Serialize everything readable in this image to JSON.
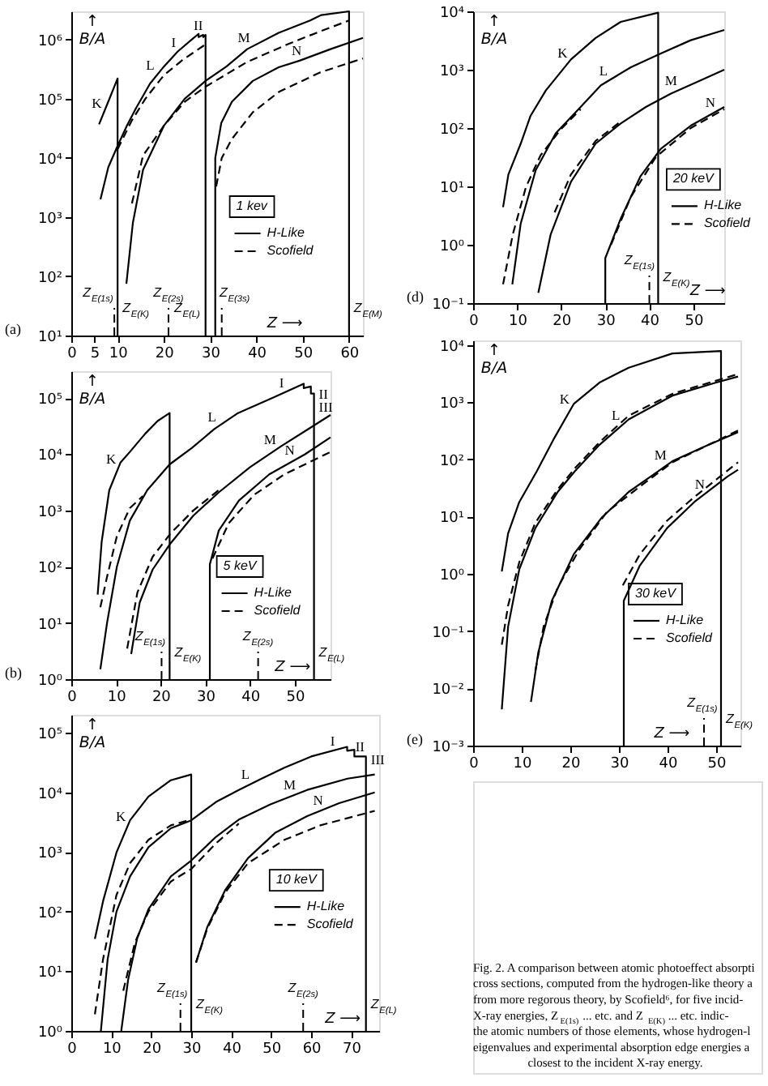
{
  "chart_data": [
    {
      "type": "line",
      "title": "1 kev",
      "xlabel": "Z ⟶",
      "ylabel": "↑\nB/A",
      "log": true,
      "legend": "right",
      "xlim": [
        0,
        63
      ],
      "ylim": [
        10,
        3000000
      ],
      "xticks": [
        0,
        5,
        10,
        20,
        30,
        40,
        50,
        60
      ],
      "yticks": [
        {
          "value": 10,
          "label": "10¹"
        },
        {
          "value": 100,
          "label": "10²"
        },
        {
          "value": 1000,
          "label": "10³"
        },
        {
          "value": 10000,
          "label": "10⁴"
        },
        {
          "value": 100000,
          "label": "10⁵"
        },
        {
          "value": 1000000,
          "label": "10⁶"
        }
      ],
      "series": [
        {
          "name": "H-Like",
          "color": "#000000",
          "line_style": "solid",
          "x": [
            6,
            8,
            10,
            10
          ],
          "values": [
            37000,
            90000,
            220000,
            10
          ]
        },
        {
          "color": "#000000",
          "line_style": "solid",
          "x": [
            6.3,
            8,
            10,
            12,
            14,
            17,
            20,
            23,
            26,
            27.5,
            27.5,
            28.5,
            28.5,
            29,
            29
          ],
          "values": [
            2000,
            7000,
            16000,
            35000,
            70000,
            180000,
            350000,
            630000,
            1000000,
            1250000,
            1100000,
            1200000,
            1100000,
            1200000,
            10
          ]
        },
        {
          "color": "#000000",
          "line_style": "solid",
          "x": [
            11.9,
            13.3,
            15.5,
            20,
            24.5,
            29,
            33.5,
            38,
            44.8,
            51.6,
            54,
            60,
            60
          ],
          "values": [
            75,
            800,
            6300,
            35000,
            100000,
            200000,
            350000,
            690000,
            1300000,
            2100000,
            2600000,
            3000000,
            10
          ]
        },
        {
          "color": "#000000",
          "line_style": "solid",
          "x": [
            31.1,
            31.1,
            32.4,
            34.7,
            39.2,
            44.8,
            49.3,
            56,
            63
          ],
          "values": [
            10,
            10000,
            39000,
            89000,
            200000,
            340000,
            440000,
            690000,
            1070000
          ]
        },
        {
          "name": "Scofield",
          "color": "#000000",
          "line_style": "dashed",
          "x": [
            10,
            13,
            16,
            20,
            24,
            29
          ],
          "values": [
            14000,
            42000,
            100000,
            250000,
            450000,
            830000
          ]
        },
        {
          "color": "#000000",
          "line_style": "dashed",
          "x": [
            13.1,
            15.5,
            20,
            24.5,
            29,
            38,
            47,
            54,
            60
          ],
          "values": [
            1700,
            11000,
            35000,
            89000,
            160000,
            420000,
            850000,
            1400000,
            2100000
          ]
        },
        {
          "color": "#000000",
          "line_style": "dashed",
          "x": [
            31.3,
            32.5,
            34.7,
            39.2,
            44.8,
            53.8,
            63
          ],
          "values": [
            3300,
            10000,
            21000,
            59000,
            130000,
            280000,
            480000
          ]
        }
      ],
      "ref_lines": [
        {
          "axis": "x",
          "value": 9.3,
          "label": "Z$_{E(1s)}$",
          "line_style": "dashed"
        },
        {
          "axis": "x",
          "value": 21,
          "label": "Z$_{E(2s)}$",
          "line_style": "dashed"
        },
        {
          "axis": "x",
          "value": 32.5,
          "label": "Z$_{E(3s)}$",
          "line_style": "dashed"
        }
      ],
      "annotations": [
        "(a)",
        {
          "text": "K",
          "x": 7.5,
          "y": 72000
        },
        {
          "text": "L",
          "x": 19,
          "y": 280000
        },
        {
          "text": "M",
          "x": 38.5,
          "y": 720000
        },
        {
          "text": "N",
          "x": 49.3,
          "y": 440000
        },
        {
          "text": "I",
          "x": 23.5,
          "y": 680000
        },
        {
          "text": "II",
          "x": 28.45,
          "y": 1200000
        },
        {
          "text": "Z$_{E(K)}$",
          "x": 10,
          "y": 28
        },
        {
          "text": "Z$_{E(L)}$",
          "x": 29,
          "y": 28
        },
        {
          "text": "Z$_{E(M)}$",
          "x": 60,
          "y": 28
        }
      ]
    },
    {
      "type": "line",
      "title": "5 keV",
      "xlabel": "Z ⟶",
      "ylabel": "↑\nB/A",
      "log": true,
      "legend": "right",
      "xlim": [
        0,
        58
      ],
      "ylim": [
        1,
        300000
      ],
      "xticks": [
        0,
        10,
        20,
        30,
        40,
        50
      ],
      "yticks": [
        {
          "value": 1,
          "label": "10⁰"
        },
        {
          "value": 10,
          "label": "10¹"
        },
        {
          "value": 100,
          "label": "10²"
        },
        {
          "value": 1000,
          "label": "10³"
        },
        {
          "value": 10000,
          "label": "10⁴"
        },
        {
          "value": 100000,
          "label": "10⁵"
        }
      ],
      "series": [
        {
          "name": "H-Like",
          "color": "#000000",
          "line_style": "solid",
          "x": [
            5.9,
            6.8,
            8.5,
            11,
            13.1,
            16.5,
            19.3,
            22,
            22
          ],
          "values": [
            32,
            280,
            2300,
            7100,
            11000,
            23000,
            39000,
            54000,
            1
          ]
        },
        {
          "color": "#000000",
          "line_style": "solid",
          "x": [
            6.5,
            8,
            10.2,
            13.1,
            17,
            22,
            27,
            32,
            37.3,
            45,
            52,
            52,
            53.6,
            53.6,
            54.3,
            54.3
          ],
          "values": [
            1.5,
            10,
            100,
            660,
            2300,
            6600,
            13000,
            28000,
            54000,
            100000,
            180000,
            150000,
            160000,
            120000,
            120000,
            1
          ]
        },
        {
          "color": "#000000",
          "line_style": "solid",
          "x": [
            13.4,
            15.3,
            18.2,
            22.2,
            27.3,
            33,
            40,
            47,
            53,
            58
          ],
          "values": [
            2.8,
            23,
            89,
            260,
            810,
            2100,
            5900,
            14000,
            28000,
            50000
          ]
        },
        {
          "color": "#000000",
          "line_style": "solid",
          "x": [
            31,
            31,
            33,
            37.5,
            44.3,
            52.3,
            58
          ],
          "values": [
            1,
            110,
            440,
            1500,
            4400,
            10000,
            20000
          ]
        },
        {
          "name": "Scofield",
          "color": "#000000",
          "line_style": "dashed",
          "x": [
            6.5,
            8,
            10.2,
            13.1,
            16
          ],
          "values": [
            19,
            66,
            350,
            1100,
            1800
          ]
        },
        {
          "color": "#000000",
          "line_style": "dashed",
          "x": [
            12.5,
            14.8,
            18.2,
            22.2,
            27.3,
            33
          ],
          "values": [
            3.5,
            35,
            150,
            390,
            1000,
            2300
          ]
        },
        {
          "color": "#000000",
          "line_style": "dashed",
          "x": [
            31.6,
            35.2,
            40.9,
            47.7,
            58
          ],
          "values": [
            140,
            590,
            1900,
            4400,
            11000
          ]
        }
      ],
      "ref_lines": [
        {
          "axis": "x",
          "value": 20.2,
          "label": "Z$_{E(1s)}$",
          "line_style": "dashed"
        },
        {
          "axis": "x",
          "value": 41.8,
          "label": "Z$_{E(2s)}$",
          "line_style": "dashed"
        }
      ],
      "annotations": [
        "(b)",
        {
          "text": "K",
          "x": 11,
          "y": 7100
        },
        {
          "text": "L",
          "x": 33,
          "y": 32000
        },
        {
          "text": "M",
          "x": 46,
          "y": 12400
        },
        {
          "text": "N",
          "x": 50,
          "y": 7900
        },
        {
          "text": "I",
          "x": 48,
          "y": 128000
        },
        {
          "text": "II",
          "x": 54.3,
          "y": 118000
        },
        {
          "text": "III",
          "x": 54.3,
          "y": 70000
        },
        {
          "text": "Z$_{E(K)}$",
          "x": 22,
          "y": 2.9
        },
        {
          "text": "Z$_{E(L)}$",
          "x": 54.3,
          "y": 2.9
        }
      ]
    },
    {
      "type": "line",
      "title": "10 keV",
      "xlabel": "Z ⟶",
      "ylabel": "↑\nB/A",
      "log": true,
      "legend": "right",
      "xlim": [
        0,
        77
      ],
      "ylim": [
        1,
        200000
      ],
      "xticks": [
        0,
        10,
        20,
        30,
        40,
        50,
        60,
        70
      ],
      "yticks": [
        {
          "value": 1,
          "label": "10⁰"
        },
        {
          "value": 10,
          "label": "10¹"
        },
        {
          "value": 100,
          "label": "10²"
        },
        {
          "value": 1000,
          "label": "10³"
        },
        {
          "value": 10000,
          "label": "10⁴"
        },
        {
          "value": 100000,
          "label": "10⁵"
        }
      ],
      "series": [
        {
          "name": "H-Like",
          "color": "#000000",
          "line_style": "solid",
          "x": [
            5.9,
            7.95,
            11.3,
            14.7,
            19.3,
            24.9,
            30,
            30
          ],
          "values": [
            35,
            150,
            980,
            3400,
            8500,
            16000,
            20000,
            1
          ]
        },
        {
          "color": "#000000",
          "line_style": "solid",
          "x": [
            7.4,
            9.1,
            11.3,
            14.7,
            19.3,
            24.9,
            30,
            36.2,
            41.9,
            47.6,
            53.3,
            60,
            69,
            69,
            70.8,
            70.8,
            73.7,
            73.7
          ],
          "values": [
            1,
            16,
            100,
            390,
            1200,
            2500,
            3400,
            6900,
            11000,
            17000,
            26000,
            40000,
            58000,
            50000,
            52000,
            40000,
            40000,
            1
          ]
        },
        {
          "color": "#000000",
          "line_style": "solid",
          "x": [
            12.5,
            14.2,
            16.5,
            19.3,
            24.9,
            30,
            36.2,
            41.9,
            49.8,
            59,
            69.1,
            75.9
          ],
          "values": [
            1,
            7.1,
            36,
            110,
            390,
            720,
            1800,
            3500,
            6300,
            11000,
            17000,
            20000
          ]
        },
        {
          "color": "#000000",
          "line_style": "solid",
          "x": [
            31.2,
            34,
            38.5,
            44.2,
            51,
            59,
            67,
            75.9
          ],
          "values": [
            14,
            55,
            230,
            790,
            2100,
            4000,
            6600,
            10000
          ]
        },
        {
          "name": "Scofield",
          "color": "#000000",
          "line_style": "dashed",
          "x": [
            5.9,
            7.95,
            11.3,
            14.7,
            19.3,
            24.9,
            30
          ],
          "values": [
            1.9,
            16,
            190,
            650,
            1600,
            2800,
            3500
          ]
        },
        {
          "color": "#000000",
          "line_style": "dashed",
          "x": [
            13,
            15.9,
            19.3,
            24.9,
            30,
            36.2,
            41.9
          ],
          "values": [
            4.7,
            30,
            100,
            320,
            520,
            1400,
            3000
          ]
        },
        {
          "color": "#000000",
          "line_style": "dashed",
          "x": [
            31.2,
            34,
            38.5,
            44.2,
            53.3,
            62.3,
            75.9
          ],
          "values": [
            14,
            52,
            210,
            650,
            1600,
            2800,
            4900
          ]
        }
      ],
      "ref_lines": [
        {
          "axis": "x",
          "value": 27.3,
          "label": "Z$_{E(1s)}$",
          "line_style": "dashed"
        },
        {
          "axis": "x",
          "value": 58,
          "label": "Z$_{E(2s)}$",
          "line_style": "dashed"
        }
      ],
      "annotations": [
        {
          "text": "K",
          "x": 14.7,
          "y": 3400
        },
        {
          "text": "L",
          "x": 44.9,
          "y": 14000
        },
        {
          "text": "M",
          "x": 55.7,
          "y": 9000
        },
        {
          "text": "N",
          "x": 62.7,
          "y": 5000
        },
        {
          "text": "I",
          "x": 66,
          "y": 51000
        },
        {
          "text": "II",
          "x": 72.2,
          "y": 40000
        },
        {
          "text": "III",
          "x": 73.7,
          "y": 36000
        },
        {
          "text": "Z$_{E(K)}$",
          "x": 30,
          "y": 2.7
        },
        {
          "text": "Z$_{E(L)}$",
          "x": 73.7,
          "y": 2.7
        }
      ]
    },
    {
      "type": "line",
      "title": "20 keV",
      "xlabel": "Z ⟶",
      "ylabel": "↑\nB/A",
      "log": true,
      "legend": "right",
      "xlim": [
        0,
        57
      ],
      "ylim": [
        0.1,
        10000
      ],
      "xticks": [
        0,
        10,
        20,
        30,
        40,
        50
      ],
      "yticks": [
        {
          "value": 0.1,
          "label": "10⁻¹"
        },
        {
          "value": 1,
          "label": "10⁰"
        },
        {
          "value": 10,
          "label": "10¹"
        },
        {
          "value": 100,
          "label": "10²"
        },
        {
          "value": 1000,
          "label": "10³"
        },
        {
          "value": 10000,
          "label": "10⁴"
        }
      ],
      "series": [
        {
          "name": "H-Like",
          "color": "#000000",
          "line_style": "solid",
          "x": [
            6.8,
            8,
            10.8,
            13,
            16.5,
            22.2,
            27.8,
            33.5,
            42,
            42
          ],
          "values": [
            4.4,
            16,
            54,
            160,
            440,
            1500,
            3500,
            6600,
            9500,
            0.1
          ]
        },
        {
          "color": "#000000",
          "line_style": "solid",
          "x": [
            8.9,
            10.8,
            14.2,
            18.75,
            24.4,
            29,
            35.8,
            42.6,
            49.4,
            57
          ],
          "values": [
            0.21,
            2.3,
            19,
            81,
            230,
            540,
            1100,
            1900,
            3200,
            4800
          ]
        },
        {
          "color": "#000000",
          "line_style": "solid",
          "x": [
            14.8,
            17.6,
            22.2,
            27.8,
            33.5,
            39.2,
            44.9,
            51.7,
            57
          ],
          "values": [
            0.15,
            1.5,
            12,
            54,
            120,
            230,
            390,
            660,
            1000
          ]
        },
        {
          "color": "#000000",
          "line_style": "solid",
          "x": [
            30,
            30,
            33.5,
            38,
            42.6,
            49.4,
            57
          ],
          "values": [
            0.1,
            0.59,
            2.8,
            15,
            44,
            110,
            230
          ]
        },
        {
          "name": "Scofield",
          "color": "#000000",
          "line_style": "dashed",
          "x": [
            6.8,
            9,
            12,
            15.3,
            19.9,
            24.4
          ],
          "values": [
            0.21,
            1.5,
            9.8,
            34,
            95,
            210
          ]
        },
        {
          "color": "#000000",
          "line_style": "dashed",
          "x": [
            18.5,
            22.2,
            27.8,
            33.5
          ],
          "values": [
            3.6,
            16,
            60,
            130
          ]
        },
        {
          "color": "#000000",
          "line_style": "dashed",
          "x": [
            31.3,
            35.8,
            41.5,
            49.4,
            57
          ],
          "values": [
            1,
            6.6,
            32,
            100,
            210
          ]
        }
      ],
      "ref_lines": [
        {
          "axis": "x",
          "value": 40,
          "label": "Z$_{E(1s)}$",
          "line_style": "dashed"
        }
      ],
      "annotations": [
        "(d)",
        {
          "text": "K",
          "x": 22.2,
          "y": 1500
        },
        {
          "text": "L",
          "x": 31,
          "y": 665
        },
        {
          "text": "M",
          "x": 46,
          "y": 425
        },
        {
          "text": "N",
          "x": 55,
          "y": 190
        },
        {
          "text": "Z$_{E(K)}$",
          "x": 42,
          "y": 0.27
        }
      ]
    },
    {
      "type": "line",
      "title": "30 keV",
      "xlabel": "Z ⟶",
      "ylabel": "↑\nB/A",
      "log": true,
      "legend": "right",
      "xlim": [
        0,
        55
      ],
      "ylim": [
        0.001,
        12000
      ],
      "xticks": [
        0,
        10,
        20,
        30,
        40,
        50
      ],
      "yticks": [
        {
          "value": 0.001,
          "label": "10⁻³"
        },
        {
          "value": 0.01,
          "label": "10⁻²"
        },
        {
          "value": 0.1,
          "label": "10⁻¹"
        },
        {
          "value": 1,
          "label": "10⁰"
        },
        {
          "value": 10,
          "label": "10¹"
        },
        {
          "value": 100,
          "label": "10²"
        },
        {
          "value": 1000,
          "label": "10³"
        },
        {
          "value": 10000,
          "label": "10⁴"
        }
      ],
      "series": [
        {
          "name": "H-Like",
          "color": "#000000",
          "line_style": "solid",
          "x": [
            5.9,
            7.2,
            9.5,
            13.1,
            16.5,
            20.7,
            26,
            32,
            41,
            51,
            51
          ],
          "values": [
            1.1,
            5.1,
            18,
            62,
            220,
            930,
            2200,
            4000,
            7100,
            7800,
            0.001
          ]
        },
        {
          "color": "#000000",
          "line_style": "solid",
          "x": [
            5.9,
            7.2,
            9.5,
            12.8,
            17.4,
            21,
            26,
            32,
            41,
            50,
            54.5
          ],
          "values": [
            0.0043,
            0.12,
            1.2,
            6.3,
            27,
            63,
            180,
            500,
            1300,
            2200,
            2800
          ]
        },
        {
          "color": "#000000",
          "line_style": "solid",
          "x": [
            11.9,
            13.4,
            16.2,
            20.7,
            26.4,
            32,
            36.5,
            41,
            47.8,
            54.5
          ],
          "values": [
            0.0058,
            0.042,
            0.34,
            2.2,
            9.5,
            27,
            50,
            93,
            170,
            300
          ]
        },
        {
          "color": "#000000",
          "line_style": "solid",
          "x": [
            31,
            31,
            34.3,
            39.9,
            45.5,
            52.3,
            54.5
          ],
          "values": [
            0.001,
            0.34,
            1.4,
            6.3,
            18,
            50,
            66
          ]
        },
        {
          "name": "Scofield",
          "color": "#000000",
          "line_style": "dashed",
          "x": [
            5.9,
            7.2,
            9.5,
            12.8,
            17.4,
            21,
            26,
            32,
            41,
            54.5
          ],
          "values": [
            0.058,
            0.28,
            1.6,
            7.8,
            30,
            71,
            200,
            580,
            1400,
            3100
          ]
        },
        {
          "color": "#000000",
          "line_style": "dashed",
          "x": [
            12.8,
            14.5,
            17.4,
            21.9,
            27.5,
            34.2,
            41,
            54.5
          ],
          "values": [
            0.02,
            0.12,
            0.58,
            2.7,
            12,
            33,
            89,
            320
          ]
        },
        {
          "color": "#000000",
          "line_style": "dashed",
          "x": [
            30.8,
            34.3,
            39.9,
            45.5,
            54.5
          ],
          "values": [
            0.63,
            2.2,
            8.5,
            22,
            89
          ]
        }
      ],
      "ref_lines": [
        {
          "axis": "x",
          "value": 47.5,
          "label": "Z$_{E(1s)}$",
          "line_style": "dashed"
        }
      ],
      "annotations": [
        "(e)",
        {
          "text": "K",
          "x": 20.7,
          "y": 930
        },
        {
          "text": "L",
          "x": 31,
          "y": 420
        },
        {
          "text": "M",
          "x": 40,
          "y": 81
        },
        {
          "text": "N",
          "x": 48,
          "y": 26
        },
        {
          "text": "Z$_{E(K)}$",
          "x": 51,
          "y": 0.0028
        }
      ]
    },
    {
      "type": "other",
      "annotations": [
        "Fig. 2. A comparison between atomic photoeffect absorpti",
        "cross sections, computed from the hydrogen-like theory a",
        "from more regorous theory, by Scofield⁶, for five incid-",
        "X-ray energies, Z$_{E(1s)}$ ... etc. and Z$_{E(K)}$ ... etc. indic-",
        "the atomic numbers of those elements, whose hydrogen-l",
        "eigenvalues and experimental absorption edge energies a",
        "closest to the incident X-ray energy."
      ]
    }
  ]
}
